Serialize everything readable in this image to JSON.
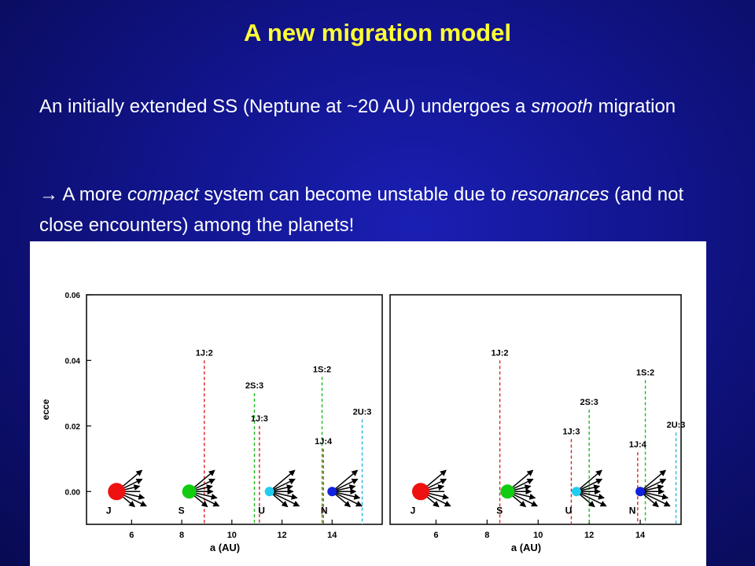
{
  "slide": {
    "title": "A new migration model",
    "para1": {
      "part1": "An initially extended SS (Neptune at ~20 AU) undergoes a ",
      "italic1": "smooth",
      "part2": " migration"
    },
    "para2": {
      "arrow": "→",
      "part1": " A more ",
      "italic1": "compact",
      "part2": " system can become unstable due to ",
      "italic2": "resonances",
      "part3": " (and not close encounters) among the planets!"
    },
    "colors": {
      "background": "#11148a",
      "title": "#ffff33",
      "text": "#ffffff"
    }
  },
  "chart_data": [
    {
      "type": "scatter",
      "title": "",
      "xlabel": "a (AU)",
      "ylabel": "ecce",
      "xlim": [
        4.2,
        16.0
      ],
      "ylim": [
        -0.01,
        0.06
      ],
      "xticks": [
        6,
        8,
        10,
        12,
        14
      ],
      "yticks": [
        "0.00",
        "0.02",
        "0.04",
        "0.06"
      ],
      "grid": false,
      "planets": [
        {
          "label": "J",
          "a": 5.4,
          "e": 0.0,
          "color": "#ee1111",
          "size": "large"
        },
        {
          "label": "S",
          "a": 8.3,
          "e": 0.0,
          "color": "#11cc11",
          "size": "medium"
        },
        {
          "label": "U",
          "a": 11.5,
          "e": 0.0,
          "color": "#22ccee",
          "size": "small"
        },
        {
          "label": "N",
          "a": 14.0,
          "e": 0.0,
          "color": "#1122dd",
          "size": "small"
        }
      ],
      "resonances": [
        {
          "label": "1J:2",
          "a": 8.9,
          "top_e": 0.04,
          "color": "#dd2222"
        },
        {
          "label": "2S:3",
          "a": 10.9,
          "top_e": 0.03,
          "color": "#22bb22"
        },
        {
          "label": "1J:3",
          "a": 11.1,
          "top_e": 0.02,
          "color": "#dd2222"
        },
        {
          "label": "1S:2",
          "a": 13.6,
          "top_e": 0.035,
          "color": "#22bb22"
        },
        {
          "label": "1J:4",
          "a": 13.65,
          "top_e": 0.013,
          "color": "#dd2222"
        },
        {
          "label": "2U:3",
          "a": 15.2,
          "top_e": 0.022,
          "color": "#22bbdd"
        }
      ]
    },
    {
      "type": "scatter",
      "title": "",
      "xlabel": "a (AU)",
      "ylabel": "",
      "xlim": [
        4.2,
        15.6
      ],
      "ylim": [
        -0.01,
        0.06
      ],
      "xticks": [
        6,
        8,
        10,
        12,
        14
      ],
      "yticks": [],
      "grid": false,
      "planets": [
        {
          "label": "J",
          "a": 5.4,
          "e": 0.0,
          "color": "#ee1111",
          "size": "large"
        },
        {
          "label": "S",
          "a": 8.8,
          "e": 0.0,
          "color": "#11cc11",
          "size": "medium"
        },
        {
          "label": "U",
          "a": 11.5,
          "e": 0.0,
          "color": "#22ccee",
          "size": "small"
        },
        {
          "label": "N",
          "a": 14.0,
          "e": 0.0,
          "color": "#1122dd",
          "size": "small"
        }
      ],
      "resonances": [
        {
          "label": "1J:2",
          "a": 8.5,
          "top_e": 0.04,
          "color": "#dd2222"
        },
        {
          "label": "2S:3",
          "a": 12.0,
          "top_e": 0.025,
          "color": "#22bb22"
        },
        {
          "label": "1J:3",
          "a": 11.3,
          "top_e": 0.016,
          "color": "#dd2222"
        },
        {
          "label": "1S:2",
          "a": 14.2,
          "top_e": 0.034,
          "color": "#22bb22"
        },
        {
          "label": "1J:4",
          "a": 13.9,
          "top_e": 0.012,
          "color": "#dd2222"
        },
        {
          "label": "2U:3",
          "a": 15.4,
          "top_e": 0.018,
          "color": "#22bbdd"
        }
      ]
    }
  ]
}
